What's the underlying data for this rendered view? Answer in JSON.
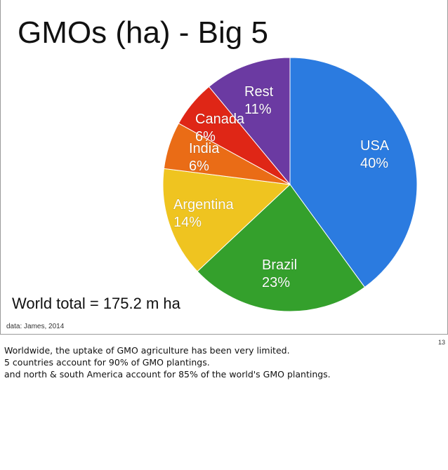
{
  "slide": {
    "title": "GMOs (ha) - Big 5",
    "world_total": "World total = 175.2 m ha",
    "source": "data: James, 2014",
    "page_number": "13"
  },
  "notes": {
    "lines": [
      "Worldwide, the uptake of GMO agriculture has been very limited.",
      "5 countries account for 90% of GMO plantings.",
      "and north & south America account for 85% of the world's GMO plantings."
    ]
  },
  "chart_data": {
    "type": "pie",
    "title": "GMOs (ha) - Big 5",
    "slices": [
      {
        "label": "USA",
        "value_label": "40%",
        "value": 40,
        "color": "#2b7be0"
      },
      {
        "label": "Brazil",
        "value_label": "23%",
        "value": 23,
        "color": "#34a02c"
      },
      {
        "label": "Argentina",
        "value_label": "14%",
        "value": 14,
        "color": "#efc420"
      },
      {
        "label": "India",
        "value_label": "6%",
        "value": 6,
        "color": "#ea6c16"
      },
      {
        "label": "Canada",
        "value_label": "6%",
        "value": 6,
        "color": "#df2616"
      },
      {
        "label": "Rest",
        "value_label": "11%",
        "value": 11,
        "color": "#6b3aa2"
      }
    ]
  }
}
